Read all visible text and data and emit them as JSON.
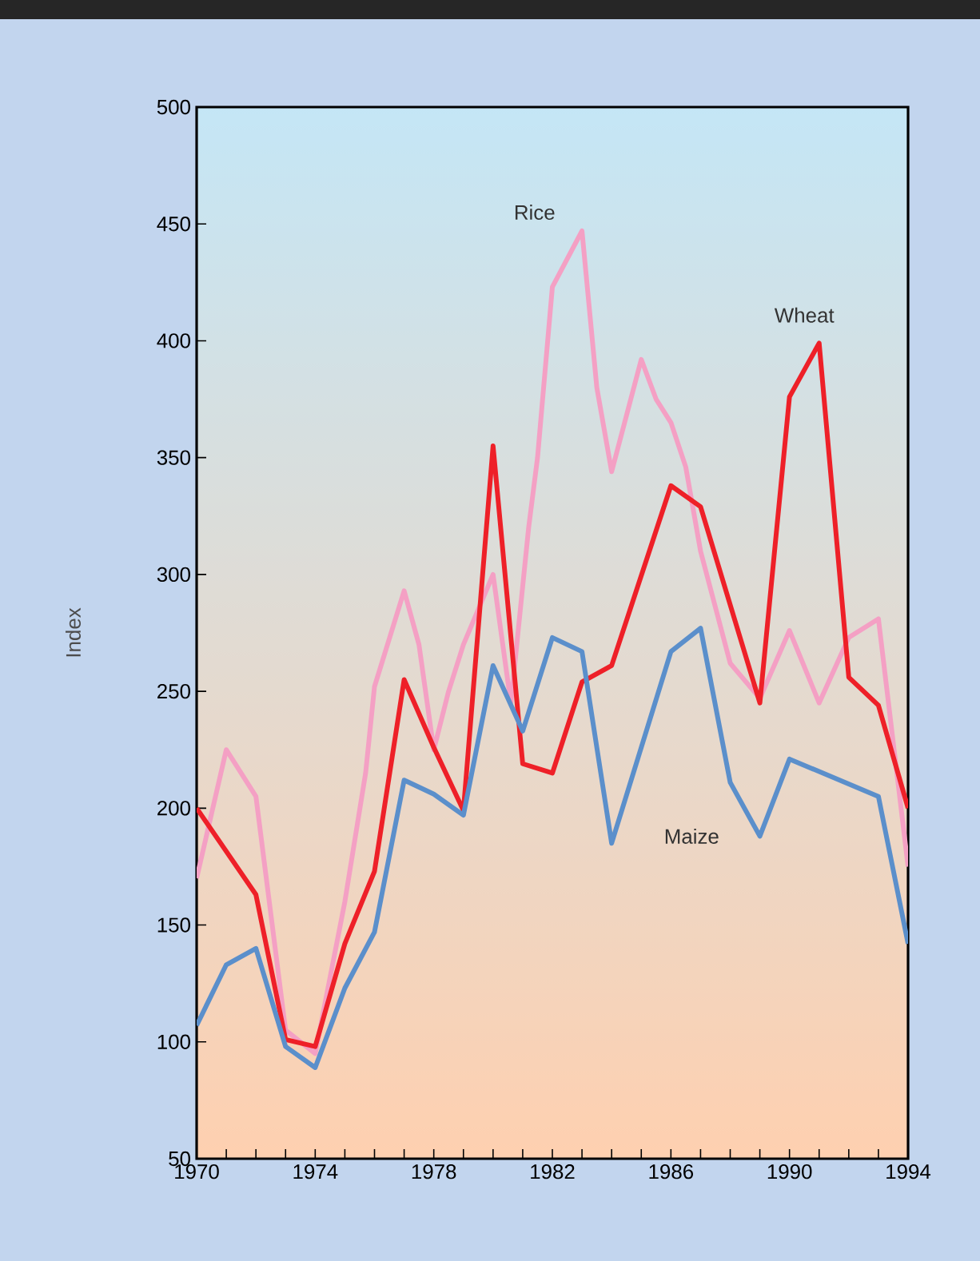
{
  "chart_data": {
    "type": "line",
    "ylabel": "Index",
    "xlim": [
      1970,
      1994
    ],
    "xticks": [
      1970,
      1974,
      1978,
      1982,
      1986,
      1990,
      1994
    ],
    "ylim": [
      50,
      500
    ],
    "yticks": [
      50,
      100,
      150,
      200,
      250,
      300,
      350,
      400,
      450,
      500
    ],
    "grid": false,
    "legend": false,
    "marker": "none",
    "line_style": "solid",
    "series": [
      {
        "name": "Rice",
        "color": "#f4a0c4",
        "x": [
          1970,
          1971,
          1972,
          1973,
          1974,
          1975,
          1975.7,
          1976,
          1977,
          1977.5,
          1978,
          1978.5,
          1979,
          1980,
          1980.6,
          1981.2,
          1981.5,
          1982,
          1983,
          1983.5,
          1984,
          1985,
          1985.5,
          1986,
          1986.5,
          1987,
          1988,
          1989,
          1990,
          1991,
          1992,
          1993,
          1994
        ],
        "values": [
          170,
          225,
          205,
          105,
          95,
          160,
          215,
          252,
          293,
          270,
          225,
          250,
          270,
          300,
          245,
          320,
          350,
          423,
          447,
          380,
          344,
          392,
          375,
          365,
          346,
          310,
          262,
          247,
          276,
          245,
          273,
          281,
          175
        ]
      },
      {
        "name": "Wheat",
        "color": "#ee2028",
        "x": [
          1970,
          1972,
          1973,
          1974,
          1975,
          1976,
          1977,
          1978,
          1979,
          1980,
          1981,
          1982,
          1983,
          1984,
          1986,
          1987,
          1989,
          1990,
          1991,
          1992,
          1993,
          1994
        ],
        "values": [
          200,
          163,
          101,
          98,
          142,
          173,
          255,
          226,
          199,
          355,
          219,
          215,
          254,
          261,
          338,
          329,
          245,
          376,
          399,
          256,
          244,
          200
        ]
      },
      {
        "name": "Maize",
        "color": "#5b8fcb",
        "x": [
          1970,
          1971,
          1972,
          1973,
          1974,
          1975,
          1976,
          1977,
          1978,
          1979,
          1980,
          1981,
          1982,
          1983,
          1984,
          1986,
          1987,
          1988,
          1989,
          1990,
          1993,
          1994
        ],
        "values": [
          107,
          133,
          140,
          98,
          89,
          123,
          147,
          212,
          206,
          197,
          261,
          233,
          273,
          267,
          185,
          267,
          277,
          211,
          188,
          221,
          205,
          142
        ]
      }
    ]
  }
}
